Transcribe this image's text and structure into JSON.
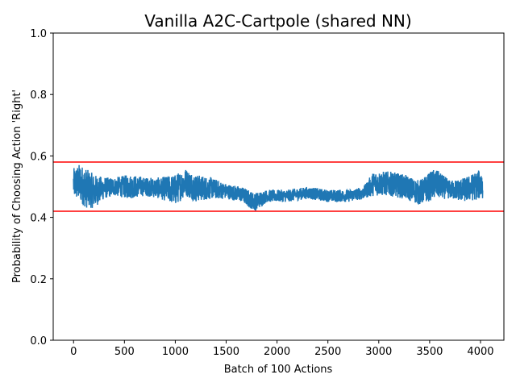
{
  "chart_data": {
    "type": "line",
    "title": "Vanilla A2C-Cartpole (shared NN)",
    "xlabel": "Batch of 100 Actions",
    "ylabel": "Probability of Choosing Action 'Right'",
    "xlim": [
      -200,
      4230
    ],
    "ylim": [
      0.0,
      1.0
    ],
    "xticks": [
      0,
      500,
      1000,
      1500,
      2000,
      2500,
      3000,
      3500,
      4000
    ],
    "yticks": [
      0.0,
      0.2,
      0.4,
      0.6,
      0.8,
      1.0
    ],
    "xtick_labels": [
      "0",
      "500",
      "1000",
      "1500",
      "2000",
      "2500",
      "3000",
      "3500",
      "4000"
    ],
    "ytick_labels": [
      "0.0",
      "0.2",
      "0.4",
      "0.6",
      "0.8",
      "1.0"
    ],
    "grid": false,
    "series": [
      {
        "color": "#1f77b4",
        "style": "noisy-band",
        "x_range": [
          0,
          4020
        ],
        "envelope": [
          {
            "x": 0,
            "low": 0.46,
            "high": 0.56
          },
          {
            "x": 60,
            "low": 0.45,
            "high": 0.575
          },
          {
            "x": 120,
            "low": 0.43,
            "high": 0.56
          },
          {
            "x": 200,
            "low": 0.43,
            "high": 0.54
          },
          {
            "x": 300,
            "low": 0.46,
            "high": 0.53
          },
          {
            "x": 400,
            "low": 0.47,
            "high": 0.53
          },
          {
            "x": 550,
            "low": 0.46,
            "high": 0.54
          },
          {
            "x": 700,
            "low": 0.47,
            "high": 0.53
          },
          {
            "x": 850,
            "low": 0.46,
            "high": 0.53
          },
          {
            "x": 1000,
            "low": 0.44,
            "high": 0.54
          },
          {
            "x": 1100,
            "low": 0.47,
            "high": 0.56
          },
          {
            "x": 1200,
            "low": 0.45,
            "high": 0.54
          },
          {
            "x": 1350,
            "low": 0.46,
            "high": 0.53
          },
          {
            "x": 1500,
            "low": 0.46,
            "high": 0.51
          },
          {
            "x": 1650,
            "low": 0.45,
            "high": 0.5
          },
          {
            "x": 1780,
            "low": 0.42,
            "high": 0.48
          },
          {
            "x": 1900,
            "low": 0.45,
            "high": 0.49
          },
          {
            "x": 2100,
            "low": 0.45,
            "high": 0.49
          },
          {
            "x": 2300,
            "low": 0.46,
            "high": 0.5
          },
          {
            "x": 2500,
            "low": 0.45,
            "high": 0.49
          },
          {
            "x": 2700,
            "low": 0.45,
            "high": 0.49
          },
          {
            "x": 2850,
            "low": 0.46,
            "high": 0.5
          },
          {
            "x": 2950,
            "low": 0.47,
            "high": 0.55
          },
          {
            "x": 3100,
            "low": 0.47,
            "high": 0.55
          },
          {
            "x": 3250,
            "low": 0.46,
            "high": 0.54
          },
          {
            "x": 3400,
            "low": 0.44,
            "high": 0.52
          },
          {
            "x": 3550,
            "low": 0.46,
            "high": 0.56
          },
          {
            "x": 3700,
            "low": 0.46,
            "high": 0.52
          },
          {
            "x": 3850,
            "low": 0.45,
            "high": 0.53
          },
          {
            "x": 4020,
            "low": 0.46,
            "high": 0.56
          }
        ]
      }
    ],
    "hlines": [
      {
        "y": 0.58,
        "color": "#ff0000"
      },
      {
        "y": 0.42,
        "color": "#ff0000"
      }
    ]
  }
}
